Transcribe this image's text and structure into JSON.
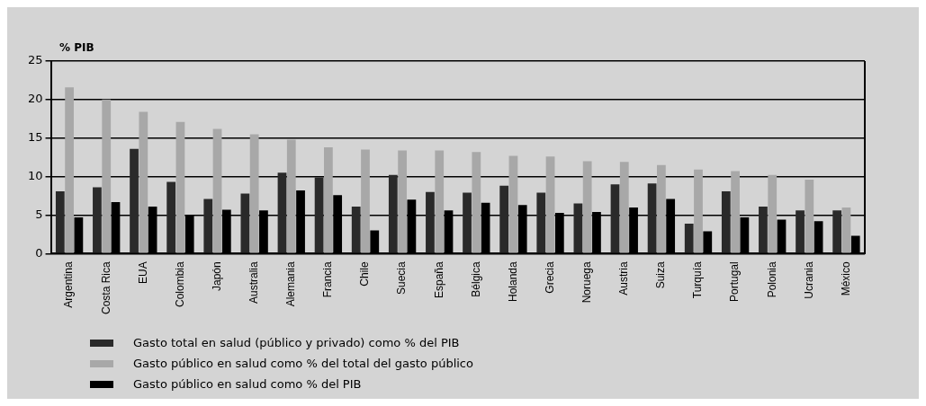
{
  "chart_data": {
    "type": "bar",
    "ylabel": "% PIB",
    "categories": [
      "Argentina",
      "Costa Rica",
      "EUA",
      "Colombia",
      "Japón",
      "Australia",
      "Alemania",
      "Francia",
      "Chile",
      "Suecia",
      "España",
      "Bélgica",
      "Holanda",
      "Grecia",
      "Noruega",
      "Austria",
      "Suiza",
      "Turquía",
      "Portugal",
      "Polonia",
      "Ucrania",
      "México"
    ],
    "series": [
      {
        "name": "Gasto total en salud (público y privado) como % del PIB",
        "color": "#2a2a2a",
        "values": [
          8.1,
          8.6,
          13.6,
          9.3,
          7.1,
          7.8,
          10.5,
          9.9,
          6.1,
          10.2,
          8.0,
          7.9,
          8.8,
          7.9,
          6.5,
          9.0,
          9.1,
          3.9,
          8.1,
          6.1,
          5.6,
          5.6
        ]
      },
      {
        "name": "Gasto público en salud como % del total del gasto público",
        "color": "#a8a8a8",
        "values": [
          21.6,
          20.0,
          18.4,
          17.1,
          16.2,
          15.5,
          14.8,
          13.8,
          13.5,
          13.4,
          13.4,
          13.2,
          12.7,
          12.6,
          12.0,
          11.9,
          11.5,
          10.9,
          10.7,
          10.2,
          9.6,
          6.0
        ]
      },
      {
        "name": "Gasto público en salud como % del PIB",
        "color": "#000000",
        "values": [
          4.7,
          6.7,
          6.1,
          5.0,
          5.7,
          5.6,
          8.2,
          7.6,
          3.0,
          7.0,
          5.6,
          6.6,
          6.3,
          5.3,
          5.4,
          6.0,
          7.1,
          2.9,
          4.7,
          4.4,
          4.2,
          2.3
        ]
      }
    ],
    "ylim": [
      0,
      25
    ],
    "yticks": [
      0,
      5,
      10,
      15,
      20,
      25
    ],
    "grid": "y",
    "legend": "bottom"
  }
}
